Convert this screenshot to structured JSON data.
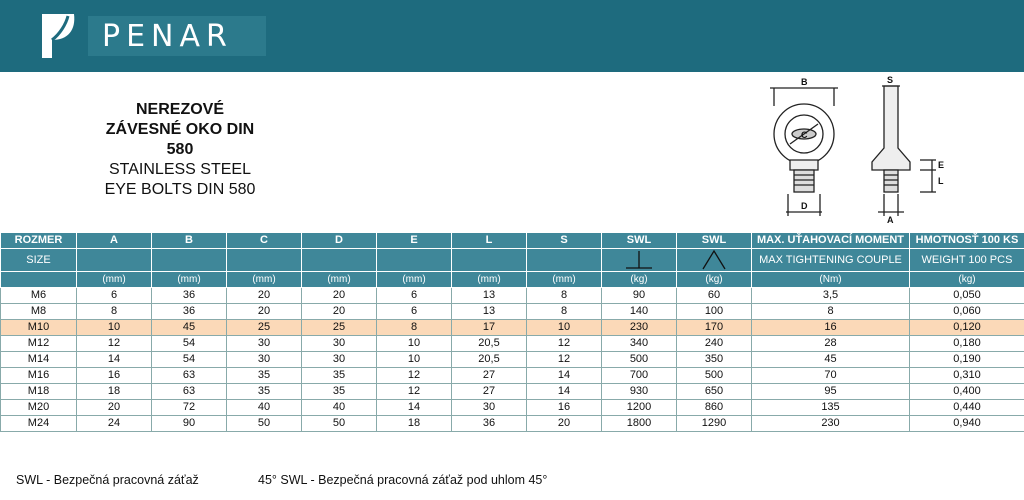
{
  "brand": {
    "name": "PENAR"
  },
  "title": {
    "line1": "NEREZOVÉ",
    "line2": "ZÁVESNÉ OKO DIN",
    "line3": "580",
    "line4": "STAINLESS STEEL",
    "line5": "EYE BOLTS DIN 580"
  },
  "diagram": {
    "labels": {
      "B": "B",
      "C": "C",
      "D": "D",
      "S": "S",
      "E": "E",
      "L": "L",
      "A": "A"
    }
  },
  "table": {
    "headers": [
      {
        "top": "ROZMER",
        "mid": "SIZE",
        "unit": ""
      },
      {
        "top": "A",
        "mid": "",
        "unit": "(mm)"
      },
      {
        "top": "B",
        "mid": "",
        "unit": "(mm)"
      },
      {
        "top": "C",
        "mid": "",
        "unit": "(mm)"
      },
      {
        "top": "D",
        "mid": "",
        "unit": "(mm)"
      },
      {
        "top": "E",
        "mid": "",
        "unit": "(mm)"
      },
      {
        "top": "L",
        "mid": "",
        "unit": "(mm)"
      },
      {
        "top": "S",
        "mid": "",
        "unit": "(mm)"
      },
      {
        "top": "SWL",
        "mid": "",
        "unit": "(kg)"
      },
      {
        "top": "SWL",
        "mid": "",
        "unit": "(kg)"
      },
      {
        "top": "MAX. UŤAHOVACÍ MOMENT",
        "mid": "MAX TIGHTENING COUPLE",
        "unit": "(Nm)"
      },
      {
        "top": "HMOTNOSŤ 100 KS",
        "mid": "WEIGHT 100 PCS",
        "unit": "(kg)"
      }
    ],
    "rows": [
      [
        "M6",
        "6",
        "36",
        "20",
        "20",
        "6",
        "13",
        "8",
        "90",
        "60",
        "3,5",
        "0,050"
      ],
      [
        "M8",
        "8",
        "36",
        "20",
        "20",
        "6",
        "13",
        "8",
        "140",
        "100",
        "8",
        "0,060"
      ],
      [
        "M10",
        "10",
        "45",
        "25",
        "25",
        "8",
        "17",
        "10",
        "230",
        "170",
        "16",
        "0,120"
      ],
      [
        "M12",
        "12",
        "54",
        "30",
        "30",
        "10",
        "20,5",
        "12",
        "340",
        "240",
        "28",
        "0,180"
      ],
      [
        "M14",
        "14",
        "54",
        "30",
        "30",
        "10",
        "20,5",
        "12",
        "500",
        "350",
        "45",
        "0,190"
      ],
      [
        "M16",
        "16",
        "63",
        "35",
        "35",
        "12",
        "27",
        "14",
        "700",
        "500",
        "70",
        "0,310"
      ],
      [
        "M18",
        "18",
        "63",
        "35",
        "35",
        "12",
        "27",
        "14",
        "930",
        "650",
        "95",
        "0,400"
      ],
      [
        "M20",
        "20",
        "72",
        "40",
        "40",
        "14",
        "30",
        "16",
        "1200",
        "860",
        "135",
        "0,440"
      ],
      [
        "M24",
        "24",
        "90",
        "50",
        "50",
        "18",
        "36",
        "20",
        "1800",
        "1290",
        "230",
        "0,940"
      ]
    ],
    "highlighted_row": "M10"
  },
  "footer": {
    "note1": "SWL - Bezpečná pracovná záťaž",
    "note2": "45° SWL - Bezpečná pracovná záťaž pod uhlom 45°"
  },
  "colors": {
    "header_bg": "#1e6b7e",
    "table_header_bg": "#3f8799",
    "highlight": "#fbd9b8"
  }
}
